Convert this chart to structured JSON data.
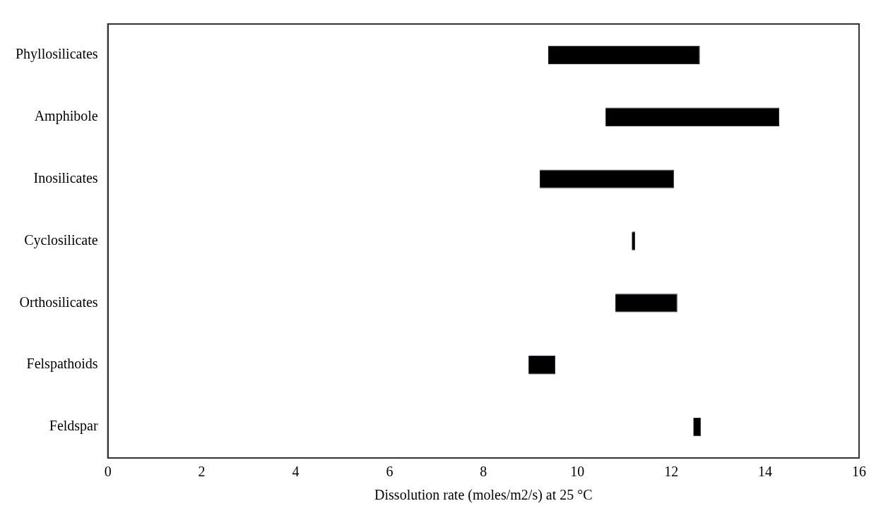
{
  "chart_data": {
    "type": "bar",
    "orientation": "horizontal",
    "xlabel": "Dissolution rate (moles/m2/s) at 25 °C",
    "categories": [
      "Phyllosilicates",
      "Amphibole",
      "Inosilicates",
      "Cyclosilicate",
      "Orthosilicates",
      "Felspathoids",
      "Feldspar"
    ],
    "base": [
      9.38,
      10.6,
      9.2,
      11.16,
      10.81,
      8.96,
      12.47
    ],
    "values": [
      3.23,
      3.7,
      2.86,
      0.07,
      1.32,
      0.57,
      0.16
    ],
    "color": "#000000",
    "xlim": [
      0,
      16
    ],
    "xticks": [
      0,
      2,
      4,
      6,
      8,
      10,
      12,
      14,
      16
    ],
    "grid": false,
    "legend": false
  }
}
